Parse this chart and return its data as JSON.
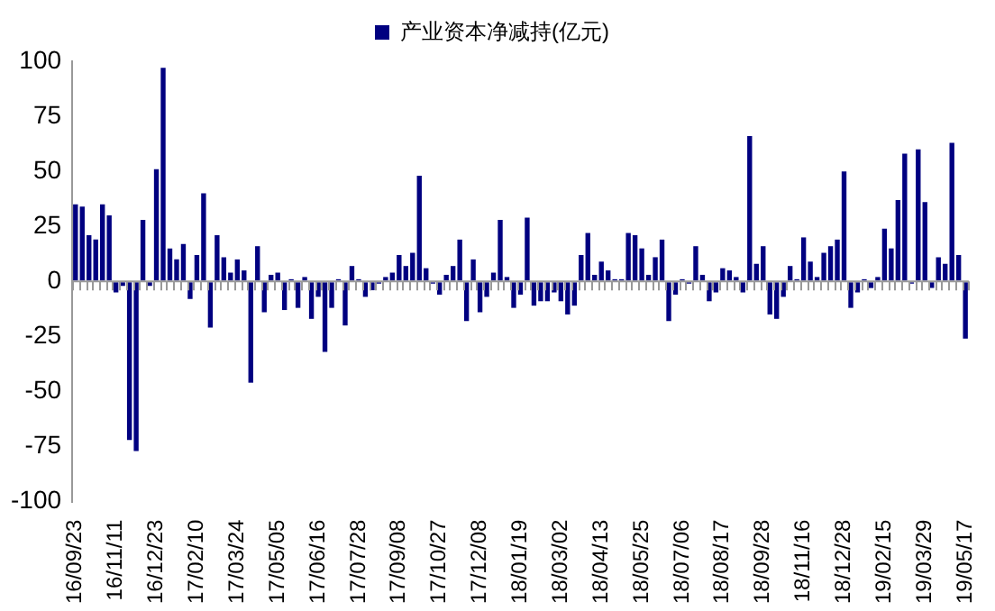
{
  "chart_data": {
    "type": "bar",
    "categories": [
      "16/09/23",
      null,
      null,
      null,
      null,
      null,
      "16/11/11",
      null,
      null,
      null,
      null,
      null,
      "16/12/23",
      null,
      null,
      null,
      null,
      null,
      "17/02/10",
      null,
      null,
      null,
      null,
      null,
      "17/03/24",
      null,
      null,
      null,
      null,
      null,
      "17/05/05",
      null,
      null,
      null,
      null,
      null,
      "17/06/16",
      null,
      null,
      null,
      null,
      null,
      "17/07/28",
      null,
      null,
      null,
      null,
      null,
      "17/09/08",
      null,
      null,
      null,
      null,
      null,
      "17/10/27",
      null,
      null,
      null,
      null,
      null,
      "17/12/08",
      null,
      null,
      null,
      null,
      null,
      "18/01/19",
      null,
      null,
      null,
      null,
      null,
      "18/03/02",
      null,
      null,
      null,
      null,
      null,
      "18/04/13",
      null,
      null,
      null,
      null,
      null,
      "18/05/25",
      null,
      null,
      null,
      null,
      null,
      "18/07/06",
      null,
      null,
      null,
      null,
      null,
      "18/08/17",
      null,
      null,
      null,
      null,
      null,
      "18/09/28",
      null,
      null,
      null,
      null,
      null,
      "18/11/16",
      null,
      null,
      null,
      null,
      null,
      "18/12/28",
      null,
      null,
      null,
      null,
      null,
      "19/02/15",
      null,
      null,
      null,
      null,
      null,
      "19/03/29",
      null,
      null,
      null,
      null,
      null,
      "19/05/17"
    ],
    "series": [
      {
        "name": "产业资本净减持(亿元)",
        "color": "#000080",
        "values": [
          35,
          34,
          21,
          19,
          35,
          30,
          -5,
          -2,
          -72,
          -77,
          28,
          -2,
          51,
          97,
          15,
          10,
          17,
          -8,
          12,
          40,
          -21,
          21,
          11,
          4,
          10,
          5,
          -46,
          16,
          -14,
          3,
          4,
          -13,
          1,
          -12,
          2,
          -17,
          -7,
          -32,
          -12,
          1,
          -20,
          7,
          1,
          -7,
          -4,
          -1,
          2,
          4,
          12,
          7,
          13,
          48,
          6,
          -1,
          -6,
          3,
          7,
          19,
          -18,
          10,
          -14,
          -7,
          4,
          28,
          2,
          -12,
          -6,
          29,
          -11,
          -9,
          -9,
          -5,
          -9,
          -15,
          -11,
          12,
          22,
          3,
          9,
          5,
          1,
          1,
          22,
          21,
          15,
          3,
          11,
          19,
          -18,
          -6,
          1,
          -1,
          16,
          3,
          -9,
          -5,
          6,
          5,
          2,
          -5,
          66,
          8,
          16,
          -15,
          -17,
          -7,
          7,
          1,
          20,
          9,
          2,
          13,
          16,
          19,
          50,
          -12,
          -5,
          1,
          -3,
          2,
          24,
          15,
          37,
          58,
          -1,
          60,
          36,
          -3,
          11,
          8,
          63,
          12,
          -26
        ]
      }
    ],
    "ylim": [
      -100,
      100
    ],
    "yticks": [
      -100,
      -75,
      -50,
      -25,
      0,
      25,
      50,
      75,
      100
    ],
    "legend": "top"
  }
}
